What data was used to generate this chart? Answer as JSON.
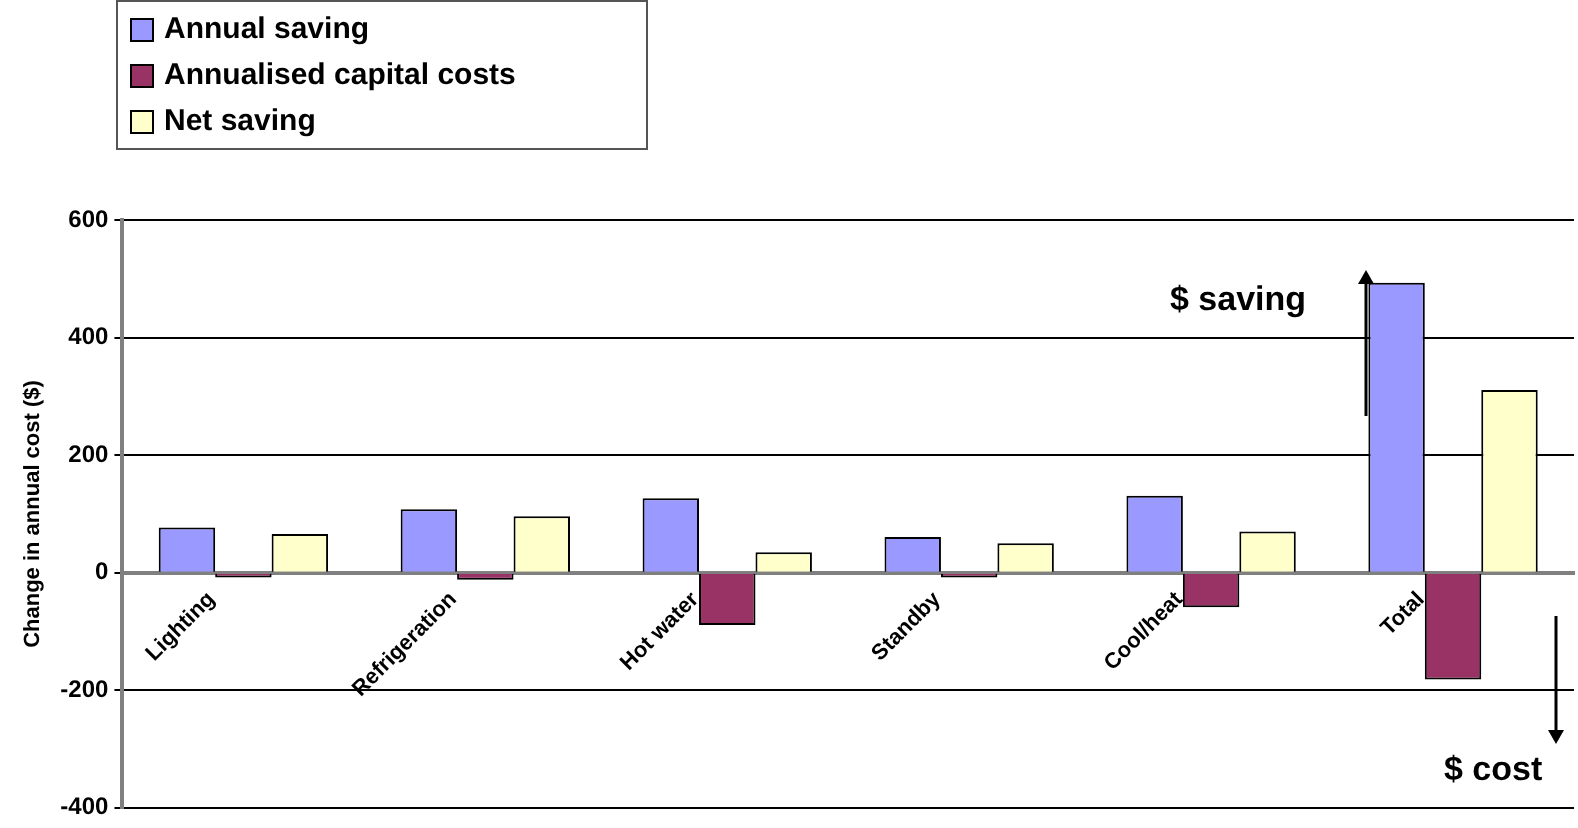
{
  "chart_data": {
    "type": "bar",
    "ylabel": "Change in annual cost ($)",
    "categories": [
      "Lighting",
      "Refrigeration",
      "Hot water",
      "Standby",
      "Cool/heat",
      "Total"
    ],
    "series": [
      {
        "name": "Annual saving",
        "color": "#9999ff",
        "values": [
          77,
          108,
          127,
          61,
          131,
          494
        ]
      },
      {
        "name": "Annualised capital costs",
        "color": "#993366",
        "values": [
          -8,
          -12,
          -89,
          -8,
          -59,
          -182
        ]
      },
      {
        "name": "Net saving",
        "color": "#ffffcc",
        "values": [
          66,
          96,
          35,
          50,
          70,
          311
        ]
      }
    ],
    "ylim": [
      -400,
      600
    ],
    "yticks": [
      -400,
      -200,
      0,
      200,
      400,
      600
    ],
    "grid": "y",
    "legend": "top left",
    "annotations": [
      "$ saving",
      "$ cost"
    ]
  }
}
